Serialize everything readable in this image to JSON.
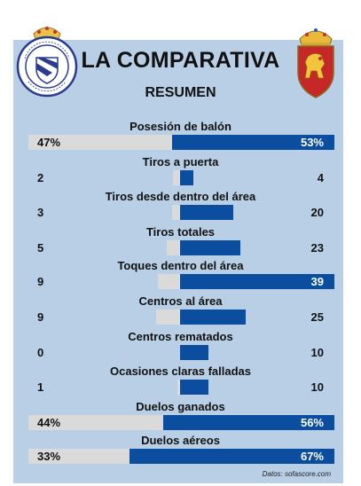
{
  "header": {
    "title": "LA COMPARATIVA",
    "subtitle": "RESUMEN",
    "home_crest_text": "REAL CLUB DEPORTIVO · LA CORUÑA",
    "away_crest_icon": "real-zaragoza-crest"
  },
  "colors": {
    "home_bar": "#dadada",
    "away_bar": "#0b4ea0",
    "panel": "#b8cfe6"
  },
  "source": "Datos: sofascore.com",
  "chart_data": {
    "type": "bar",
    "orientation": "horizontal-diverging",
    "title": "LA COMPARATIVA",
    "subtitle": "RESUMEN",
    "categories": [
      "Posesión de balón",
      "Tiros a puerta",
      "Tiros desde dentro del área",
      "Tiros totales",
      "Toques dentro del área",
      "Centros al área",
      "Centros rematados",
      "Ocasiones claras falladas",
      "Duelos ganados",
      "Duelos aéreos"
    ],
    "series": [
      {
        "values": [
          47,
          2,
          3,
          5,
          9,
          9,
          0,
          1,
          44,
          33
        ]
      },
      {
        "values": [
          53,
          4,
          20,
          23,
          39,
          25,
          10,
          10,
          56,
          67
        ]
      }
    ],
    "labels": {
      "home": [
        "47%",
        "2",
        "3",
        "5",
        "9",
        "9",
        "0",
        "1",
        "44%",
        "33%"
      ],
      "away": [
        "53%",
        "4",
        "20",
        "23",
        "39",
        "25",
        "10",
        "10",
        "56%",
        "67%"
      ]
    },
    "is_percent": [
      true,
      false,
      false,
      false,
      false,
      false,
      false,
      false,
      true,
      true
    ],
    "source": "Datos: sofascore.com"
  }
}
